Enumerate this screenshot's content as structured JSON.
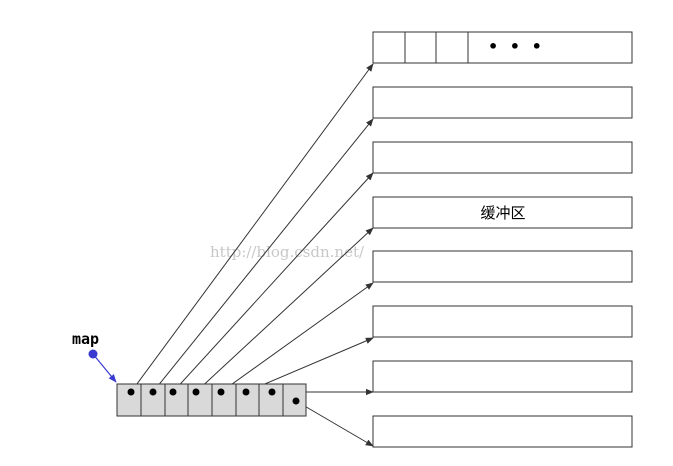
{
  "map_label": "map",
  "buffer_label": "缓冲区",
  "ellipsis": "• • •",
  "watermark": "http://blog.csdn.net/",
  "map_cells": 8,
  "buffers": 8,
  "colors": {
    "line": "#333333",
    "map_fill": "#d9d9d9",
    "pointer": "#3a3ad0",
    "watermark": "#c8c8c8"
  }
}
